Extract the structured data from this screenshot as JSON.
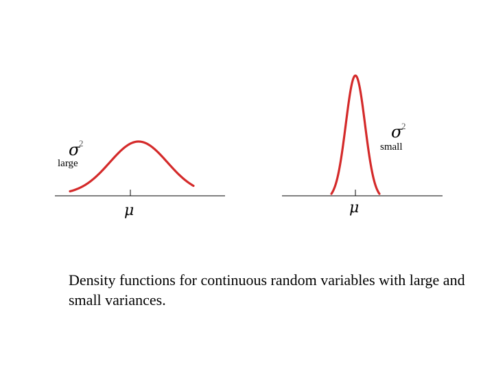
{
  "left_panel": {
    "variance_symbol": "σ",
    "variance_exponent": "2",
    "variance_label": "large",
    "mean_symbol": "μ"
  },
  "right_panel": {
    "variance_symbol": "σ",
    "variance_exponent": "2",
    "variance_label": "small",
    "mean_symbol": "μ"
  },
  "caption": "Density functions for continuous random variables with large and small variances.",
  "colors": {
    "curve": "#d42a2a",
    "axis": "#000000"
  }
}
